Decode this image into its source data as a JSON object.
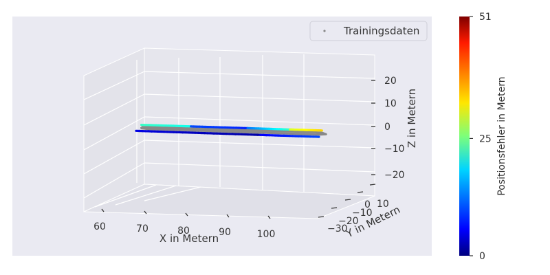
{
  "chart_data": {
    "type": "scatter",
    "projection": "3d",
    "style": "seaborn-darkgrid",
    "background_color": "#eaeaf2",
    "grid": true,
    "legend": {
      "placement": "top-right",
      "entries": [
        "Trainingsdaten"
      ],
      "marker_color": "#888888"
    },
    "axes": {
      "x": {
        "label": "X in Metern",
        "ticks": [
          "60",
          "70",
          "80",
          "90",
          "100"
        ],
        "range": [
          57,
          112
        ]
      },
      "y": {
        "label": "Y in Metern",
        "ticks": [
          "−30",
          "−20",
          "−10",
          "0",
          "10"
        ],
        "range": [
          -35,
          15
        ]
      },
      "z": {
        "label": "Z in Metern",
        "ticks": [
          "−20",
          "−10",
          "0",
          "10",
          "20"
        ],
        "range": [
          -25,
          25
        ]
      }
    },
    "colorbar": {
      "label": "Positionsfehler in Metern",
      "ticks": [
        "0",
        "25",
        "51"
      ],
      "range": [
        0,
        51
      ],
      "colormap": "jet"
    },
    "series": [
      {
        "name": "Trainingsdaten",
        "color": "#888888",
        "path_xy": [
          [
            58,
            0
          ],
          [
            59,
            -8
          ],
          [
            61,
            -12
          ],
          [
            108,
            -12
          ],
          [
            110,
            -8
          ],
          [
            109,
            0
          ],
          [
            107,
            2
          ],
          [
            60,
            2
          ],
          [
            58,
            0
          ]
        ],
        "z": 0
      },
      {
        "name": "",
        "colored_by": "Positionsfehler in Metern",
        "segments": [
          {
            "x": [
              58,
              75
            ],
            "y": -12,
            "error": [
              5,
              3
            ]
          },
          {
            "x": [
              75,
              92
            ],
            "y": -12,
            "error": [
              3,
              2
            ]
          },
          {
            "x": [
              92,
              108
            ],
            "y": -12,
            "error": [
              6,
              10
            ]
          },
          {
            "x": [
              58,
              72
            ],
            "y": 0,
            "error": [
              22,
              20
            ]
          },
          {
            "x": [
              72,
              88
            ],
            "y": 0,
            "error": [
              10,
              8
            ]
          },
          {
            "x": [
              88,
              100
            ],
            "y": 0,
            "error": [
              12,
              22
            ]
          },
          {
            "x": [
              100,
              109
            ],
            "y": 0,
            "error": [
              30,
              34
            ]
          }
        ]
      }
    ]
  }
}
